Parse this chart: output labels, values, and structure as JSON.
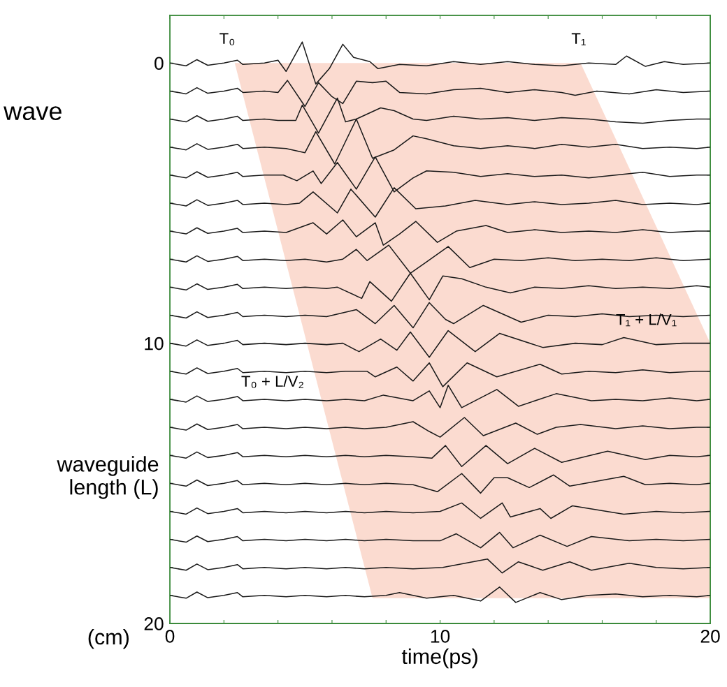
{
  "chart_data": {
    "type": "line",
    "xlabel": "time(ps)",
    "ylabel": "waveguide length (L)",
    "xlim": [
      0,
      20
    ],
    "ylim": [
      20,
      -1.7
    ],
    "xticks": [
      0,
      {
        "value": 2,
        "label": null
      },
      {
        "value": 4,
        "label": null
      },
      {
        "value": 6,
        "label": null
      },
      {
        "value": 8,
        "label": null
      },
      10,
      {
        "value": 12,
        "label": null
      },
      {
        "value": 14,
        "label": null
      },
      {
        "value": 16,
        "label": null
      },
      {
        "value": 18,
        "label": null
      },
      20
    ],
    "yticks": [
      0,
      {
        "value": 1,
        "label": null
      },
      {
        "value": 2,
        "label": null
      },
      {
        "value": 3,
        "label": null
      },
      {
        "value": 4,
        "label": null
      },
      {
        "value": 5,
        "label": null
      },
      {
        "value": 6,
        "label": null
      },
      {
        "value": 7,
        "label": null
      },
      {
        "value": 8,
        "label": null
      },
      {
        "value": 9,
        "label": null
      },
      10,
      {
        "value": 11,
        "label": null
      },
      {
        "value": 12,
        "label": null
      },
      {
        "value": 13,
        "label": null
      },
      {
        "value": 14,
        "label": null
      },
      {
        "value": 15,
        "label": null
      },
      {
        "value": 16,
        "label": null
      },
      {
        "value": 17,
        "label": null
      },
      {
        "value": 18,
        "label": null
      },
      {
        "value": 19,
        "label": null
      },
      20
    ],
    "grid": false,
    "legend": false,
    "annotations": [
      "wave",
      "(cm)",
      "T₀",
      "T₁",
      "T₀ + L/V₂",
      "T₁ + L/V₁"
    ],
    "series": [
      {
        "type": "area",
        "color": "#fad5c8",
        "x": [
          2.4,
          15.2,
          20,
          20,
          7.5
        ],
        "values": [
          0,
          0,
          10,
          19.1,
          19.1
        ]
      },
      {
        "color": "#1a1a1a",
        "x": [
          0,
          0.6,
          1,
          1.4,
          2,
          2.5,
          2.7,
          3.5,
          4,
          4.3,
          4.9,
          5.4,
          5.9,
          6.4,
          6.8,
          7.4,
          7.7,
          8.5,
          9.5,
          10.5,
          11.5,
          12.5,
          13.5,
          14.5,
          15.5,
          16.5,
          16.9,
          17.6,
          18.3,
          19,
          20
        ],
        "values": [
          0,
          0.1,
          -0.12,
          0.08,
          0,
          -0.1,
          0.05,
          0,
          -0.1,
          0.3,
          -0.75,
          0.75,
          0.2,
          -0.67,
          -0.2,
          -0.05,
          0.2,
          0.05,
          0.1,
          -0.05,
          0.05,
          -0.05,
          0.05,
          0.1,
          0,
          0.05,
          -0.25,
          0.12,
          -0.05,
          0.05,
          0
        ]
      },
      {
        "color": "#1a1a1a",
        "x": [
          0,
          0.6,
          1,
          1.4,
          2,
          2.5,
          2.7,
          3.5,
          4,
          4.35,
          5.0,
          5.5,
          6.0,
          6.4,
          6.9,
          7.5,
          8.0,
          8.5,
          9.5,
          10.5,
          11.5,
          12.5,
          13.5,
          14.5,
          15.0,
          15.8,
          17.0,
          18,
          19,
          20
        ],
        "values": [
          1,
          1.1,
          0.88,
          1.08,
          1,
          0.9,
          1.05,
          1,
          1.05,
          0.62,
          1.55,
          0.7,
          1.2,
          1.45,
          0.65,
          0.7,
          0.65,
          1.05,
          1.1,
          0.95,
          0.9,
          1.05,
          0.95,
          1.05,
          1.15,
          1,
          1.1,
          0.95,
          1.05,
          1
        ]
      },
      {
        "color": "#1a1a1a",
        "x": [
          0,
          0.6,
          1,
          1.4,
          2,
          2.5,
          2.7,
          3.5,
          4.0,
          4.66,
          4.9,
          5.5,
          6.2,
          6.5,
          6.9,
          7.8,
          8.3,
          9.0,
          9.5,
          10.5,
          11.5,
          12.5,
          13.5,
          14.5,
          15.5,
          16.5,
          17.5,
          18.5,
          19.5,
          20
        ],
        "values": [
          2,
          2.1,
          1.88,
          2.08,
          2,
          1.9,
          2.05,
          2,
          2.05,
          2.05,
          1.5,
          2.5,
          1.25,
          2.1,
          2,
          1.6,
          1.7,
          2,
          2.05,
          1.9,
          2,
          1.95,
          2.05,
          1.95,
          2,
          2.1,
          2.15,
          2.05,
          2,
          2
        ]
      },
      {
        "color": "#1a1a1a",
        "x": [
          0,
          0.6,
          1,
          1.4,
          2,
          2.5,
          2.7,
          3.5,
          4.3,
          5.0,
          5.4,
          6.1,
          6.9,
          7.5,
          8.3,
          9.0,
          9.5,
          10.5,
          11.5,
          12.5,
          13.5,
          14.5,
          15.5,
          16.5,
          17.5,
          18.5,
          19.5,
          20
        ],
        "values": [
          3,
          3.1,
          2.88,
          3.08,
          3,
          2.9,
          3.05,
          3,
          3.05,
          3.2,
          2.45,
          3.6,
          2.0,
          3.4,
          3.1,
          2.6,
          2.7,
          2.95,
          3.05,
          2.95,
          3.05,
          2.9,
          3,
          2.9,
          3.05,
          3,
          3.05,
          3
        ]
      },
      {
        "color": "#1a1a1a",
        "x": [
          0,
          0.6,
          1,
          1.4,
          2,
          2.5,
          2.7,
          3.5,
          4.2,
          4.7,
          5.3,
          5.6,
          6.2,
          6.9,
          7.6,
          8.3,
          9.0,
          9.5,
          10.5,
          11.5,
          12.5,
          13.5,
          14.5,
          15.5,
          16.5,
          17.5,
          18.5,
          19.5,
          20
        ],
        "values": [
          4,
          4.1,
          3.88,
          4.08,
          4,
          3.9,
          4.05,
          4,
          4,
          4.2,
          3.85,
          4.3,
          3.55,
          4.5,
          3.35,
          4.6,
          4.1,
          3.85,
          3.9,
          4.05,
          3.95,
          4.05,
          4,
          4.1,
          4,
          3.9,
          4.05,
          4,
          4
        ]
      },
      {
        "color": "#1a1a1a",
        "x": [
          0,
          0.6,
          1,
          1.4,
          2,
          2.5,
          2.7,
          3.5,
          4.3,
          4.8,
          5.3,
          6.2,
          6.7,
          7.6,
          8.3,
          9.1,
          10.2,
          11.3,
          12.5,
          13.5,
          14.5,
          15.5,
          16.5,
          17.5,
          18.5,
          19.5,
          20
        ],
        "values": [
          5,
          5.1,
          4.88,
          5.08,
          5,
          4.9,
          5.05,
          5,
          5.05,
          5,
          4.6,
          5.35,
          4.5,
          5.5,
          4.45,
          5.2,
          5.1,
          4.9,
          5.05,
          4.95,
          5.05,
          5,
          4.9,
          5.05,
          5,
          5.05,
          5
        ]
      },
      {
        "color": "#1a1a1a",
        "x": [
          0,
          0.6,
          1,
          1.4,
          2,
          2.5,
          2.7,
          3.5,
          4.3,
          5.3,
          5.8,
          6.4,
          6.9,
          7.6,
          7.9,
          8.5,
          9.1,
          9.9,
          10.6,
          11.7,
          12.5,
          13.5,
          14.5,
          15.5,
          16.5,
          17.5,
          18.5,
          19.5,
          20
        ],
        "values": [
          6,
          6.1,
          5.88,
          6.08,
          6,
          5.9,
          6.05,
          6,
          6.05,
          5.7,
          6.1,
          5.6,
          6.2,
          5.7,
          6.5,
          6.1,
          5.65,
          6.4,
          6,
          5.8,
          6.05,
          5.95,
          6.05,
          6,
          6.05,
          5.95,
          6.05,
          6,
          6
        ]
      },
      {
        "color": "#1a1a1a",
        "x": [
          0,
          0.6,
          1,
          1.4,
          2,
          2.5,
          2.7,
          3.5,
          4.3,
          5.0,
          5.8,
          6.4,
          6.9,
          7.3,
          8.1,
          8.9,
          9.5,
          10.3,
          11.1,
          12,
          13,
          14,
          15,
          16,
          17,
          18,
          19,
          20
        ],
        "values": [
          7,
          7.1,
          6.88,
          7.08,
          7,
          6.9,
          7.05,
          7,
          7.05,
          7,
          7.1,
          7,
          6.65,
          7.05,
          6.5,
          7.5,
          7.1,
          6.55,
          7.3,
          7,
          7.05,
          6.95,
          7.05,
          7,
          7.05,
          6.95,
          7.05,
          7
        ]
      },
      {
        "color": "#1a1a1a",
        "x": [
          0,
          0.6,
          1,
          1.4,
          2,
          2.5,
          2.7,
          3.5,
          4.3,
          5.0,
          5.8,
          6.2,
          7.1,
          7.4,
          8.2,
          8.9,
          9.6,
          10.1,
          10.8,
          11.7,
          12.6,
          13.5,
          14.5,
          15.5,
          16.5,
          17.5,
          18.5,
          19.5,
          20
        ],
        "values": [
          8,
          8.1,
          7.88,
          8.08,
          8,
          7.9,
          8.05,
          8,
          8.05,
          8,
          8.05,
          8,
          8.4,
          7.8,
          8.5,
          7.5,
          8.45,
          7.6,
          7.7,
          8,
          8.2,
          8,
          8.05,
          7.95,
          8.05,
          8,
          8.05,
          7.95,
          8
        ]
      },
      {
        "color": "#1a1a1a",
        "x": [
          0,
          0.6,
          1,
          1.4,
          2,
          2.5,
          2.7,
          3.5,
          4.3,
          5.0,
          5.8,
          6.9,
          7.6,
          8.3,
          9.0,
          9.6,
          10.2,
          10.5,
          11.6,
          13.0,
          14,
          15,
          16,
          17,
          18,
          19,
          20
        ],
        "values": [
          9,
          9.1,
          8.88,
          9.08,
          9,
          8.9,
          9.05,
          9,
          9.05,
          9,
          9.05,
          8.8,
          9.3,
          8.65,
          9.45,
          8.55,
          9.15,
          9.3,
          8.65,
          9.25,
          9,
          9.05,
          8.95,
          9.05,
          9,
          9.05,
          9
        ]
      },
      {
        "color": "#1a1a1a",
        "x": [
          0,
          0.6,
          1,
          1.4,
          2,
          2.5,
          2.7,
          3.5,
          4.3,
          5.0,
          5.8,
          6.4,
          7.0,
          7.8,
          8.4,
          8.9,
          9.6,
          10.3,
          11.3,
          12.2,
          13.8,
          15,
          16,
          16.8,
          18,
          19,
          20
        ],
        "values": [
          10,
          10.1,
          9.88,
          10.08,
          10,
          9.9,
          10.05,
          10,
          10.05,
          10,
          10.05,
          10,
          10.3,
          9.85,
          10.25,
          9.6,
          10.5,
          9.55,
          10.3,
          9.65,
          10.15,
          10,
          10.05,
          9.8,
          10.05,
          10,
          10
        ]
      },
      {
        "color": "#1a1a1a",
        "x": [
          0,
          0.6,
          1,
          1.4,
          2,
          2.5,
          2.7,
          3.5,
          4.3,
          5.0,
          5.8,
          6.5,
          7.3,
          7.6,
          8.4,
          9.0,
          9.6,
          10.1,
          11.0,
          12.1,
          13.7,
          14.5,
          15.5,
          16.5,
          17.5,
          18.5,
          19.5,
          20
        ],
        "values": [
          11,
          11.1,
          10.88,
          11.08,
          11,
          10.9,
          11.05,
          11,
          11.05,
          11,
          11.05,
          11,
          11,
          11.2,
          10.85,
          11.35,
          10.7,
          11.55,
          10.7,
          11.2,
          10.75,
          11.1,
          11,
          11.05,
          10.95,
          11.05,
          11,
          11
        ]
      },
      {
        "color": "#1a1a1a",
        "x": [
          0,
          0.6,
          1,
          1.4,
          2,
          2.5,
          2.7,
          3.5,
          4.3,
          5.0,
          5.8,
          6.5,
          7.2,
          7.9,
          9.0,
          9.6,
          10.0,
          10.3,
          10.8,
          12.1,
          12.9,
          14.3,
          15.6,
          16.5,
          17.5,
          18.5,
          19.5,
          20
        ],
        "values": [
          12,
          12.1,
          11.88,
          12.08,
          12,
          11.9,
          12.05,
          12,
          12.05,
          12,
          12.05,
          12,
          12.05,
          11.85,
          12.05,
          11.7,
          12.3,
          11.5,
          12.3,
          11.65,
          12.25,
          11.8,
          12.05,
          12,
          12.05,
          11.95,
          12.05,
          12
        ]
      },
      {
        "color": "#1a1a1a",
        "x": [
          0,
          0.6,
          1,
          1.4,
          2,
          2.5,
          2.7,
          3.5,
          4.3,
          5.0,
          5.8,
          6.5,
          7.2,
          8.0,
          9.0,
          9.6,
          10.0,
          10.9,
          11.6,
          12.8,
          13.6,
          14.3,
          15.2,
          16.5,
          17.5,
          18.5,
          19.5,
          20
        ],
        "values": [
          13,
          13.1,
          12.88,
          13.08,
          13,
          12.9,
          13.05,
          13,
          13.05,
          13,
          13.05,
          13,
          13.05,
          13,
          12.8,
          13.15,
          13.35,
          12.65,
          13.3,
          12.85,
          13.25,
          13,
          12.9,
          13.05,
          12.95,
          13.05,
          13,
          13
        ]
      },
      {
        "color": "#1a1a1a",
        "x": [
          0,
          0.6,
          1,
          1.4,
          2,
          2.5,
          2.7,
          3.5,
          4.3,
          5.0,
          5.8,
          6.5,
          7.2,
          8.0,
          9.0,
          9.7,
          10.2,
          10.8,
          11.7,
          12.5,
          13.5,
          14.5,
          16.2,
          17.6,
          18.5,
          19.5,
          20
        ],
        "values": [
          14,
          14.1,
          13.88,
          14.08,
          14,
          13.9,
          14.05,
          14,
          14.05,
          14,
          14.05,
          14,
          14.05,
          14,
          14.05,
          14.1,
          13.65,
          14.4,
          13.65,
          14.3,
          13.75,
          14.25,
          13.85,
          14.15,
          14,
          14.05,
          14
        ]
      },
      {
        "color": "#1a1a1a",
        "x": [
          0,
          0.6,
          1,
          1.4,
          2,
          2.5,
          2.7,
          3.5,
          4.3,
          5.0,
          5.8,
          6.5,
          7.2,
          8.0,
          9.0,
          9.9,
          10.8,
          11.5,
          12.0,
          12.5,
          13.3,
          14.2,
          14.8,
          16.8,
          17.6,
          18.5,
          19.5,
          20
        ],
        "values": [
          15,
          15.1,
          14.88,
          15.08,
          15,
          14.9,
          15.05,
          15,
          15.05,
          15,
          15.05,
          15,
          15.05,
          15,
          15.05,
          15.3,
          14.65,
          15.35,
          14.8,
          14.8,
          15.15,
          14.7,
          15.1,
          14.75,
          15.05,
          15,
          15.05,
          15
        ]
      },
      {
        "color": "#1a1a1a",
        "x": [
          0,
          0.6,
          1,
          1.4,
          2,
          2.5,
          2.7,
          3.5,
          4.3,
          5.0,
          5.8,
          6.5,
          7.2,
          8.0,
          9.0,
          10.0,
          10.8,
          11.5,
          12.3,
          12.6,
          13.7,
          14.1,
          14.9,
          16.8,
          18,
          19,
          20
        ],
        "values": [
          16,
          16.1,
          15.88,
          16.08,
          16,
          15.9,
          16.05,
          16,
          16.05,
          16,
          16.05,
          16,
          16.05,
          16,
          16.05,
          16,
          15.7,
          16.25,
          15.7,
          16.2,
          15.9,
          16.25,
          15.8,
          16.1,
          16,
          16.05,
          16
        ]
      },
      {
        "color": "#1a1a1a",
        "x": [
          0,
          0.6,
          1,
          1.4,
          2,
          2.5,
          2.7,
          3.5,
          4.3,
          5.0,
          5.8,
          6.5,
          7.2,
          8.0,
          9.0,
          10.0,
          10.6,
          11.5,
          12.2,
          12.7,
          13.7,
          14.7,
          15.6,
          17,
          18,
          19,
          20
        ],
        "values": [
          17,
          17.1,
          16.88,
          17.08,
          17,
          16.9,
          17.05,
          17,
          17.05,
          17,
          17.05,
          17,
          17.05,
          17,
          17.05,
          17.05,
          16.8,
          17.3,
          16.75,
          17.3,
          16.85,
          17.25,
          16.9,
          17.05,
          17,
          17.05,
          17
        ]
      },
      {
        "color": "#1a1a1a",
        "x": [
          0,
          0.6,
          1,
          1.4,
          2,
          2.5,
          2.7,
          3.5,
          4.3,
          5.0,
          5.8,
          6.5,
          7.2,
          8.0,
          9.0,
          10.1,
          11.75,
          12.3,
          12.9,
          13.8,
          14.8,
          15.6,
          17.0,
          18,
          19,
          20
        ],
        "values": [
          18,
          18.1,
          17.88,
          18.08,
          18,
          17.9,
          18.05,
          18,
          18.05,
          18,
          18.05,
          18,
          18.05,
          18,
          18.05,
          18,
          17.7,
          18.2,
          17.8,
          18.1,
          17.8,
          18.1,
          17.85,
          18,
          18.05,
          18
        ]
      },
      {
        "color": "#1a1a1a",
        "x": [
          0,
          0.6,
          1,
          1.4,
          2,
          2.5,
          2.7,
          3.5,
          4.3,
          5.0,
          5.8,
          6.5,
          7.2,
          8.0,
          8.5,
          9.5,
          10.5,
          11.5,
          12.2,
          12.8,
          13.7,
          14.5,
          15.5,
          16.5,
          17.5,
          18.5,
          19.5,
          20
        ],
        "values": [
          19,
          19.1,
          18.88,
          19.08,
          19,
          18.9,
          19.05,
          19,
          19.05,
          19,
          19.05,
          19,
          19.05,
          19,
          18.9,
          19.1,
          19,
          19.2,
          18.7,
          19.25,
          18.9,
          19.15,
          19,
          18.95,
          19.05,
          19,
          19.05,
          19
        ]
      }
    ]
  }
}
